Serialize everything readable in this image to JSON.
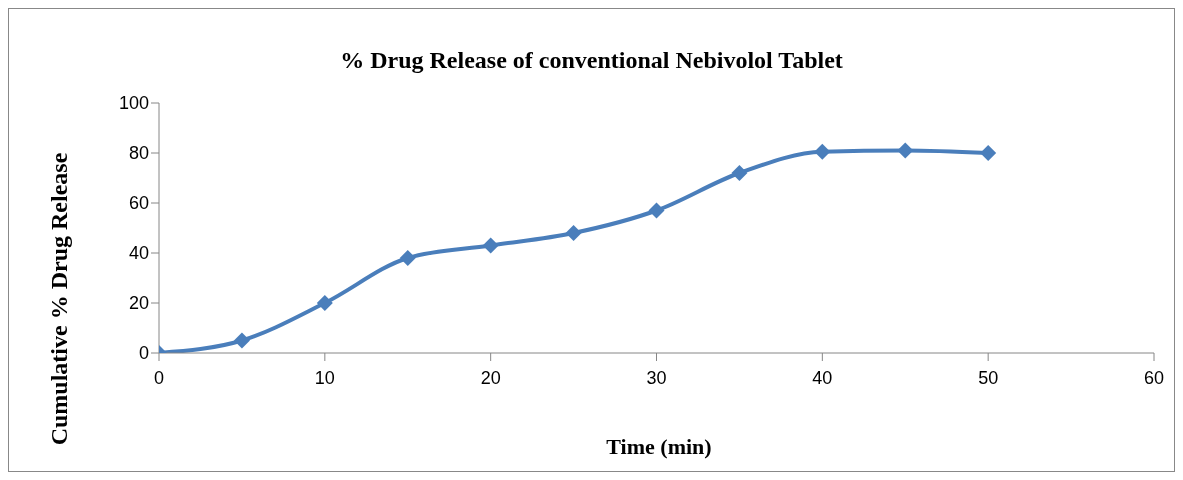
{
  "chart_data": {
    "type": "line",
    "title": "% Drug Release of conventional Nebivolol Tablet",
    "xlabel": "Time (min)",
    "ylabel": "Cumulative % Drug Release",
    "x": [
      0,
      5,
      10,
      15,
      20,
      25,
      30,
      35,
      40,
      45,
      50
    ],
    "series": [
      {
        "color": "#4a7ebb",
        "values": [
          0,
          5,
          20,
          38,
          43,
          48,
          57,
          72,
          80.5,
          81,
          80
        ]
      }
    ],
    "xlim": [
      0,
      60
    ],
    "xticks": [
      0,
      10,
      20,
      30,
      40,
      50,
      60
    ],
    "ylim": [
      0,
      100
    ],
    "yticks": [
      0,
      20,
      40,
      60,
      80,
      100
    ],
    "grid": false,
    "legend": false,
    "marker": "diamond",
    "line_style": "solid"
  }
}
